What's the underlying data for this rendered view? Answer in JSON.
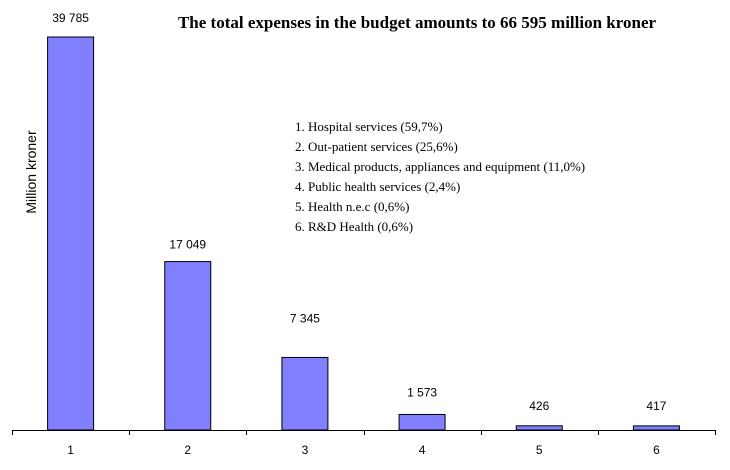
{
  "chart_data": {
    "type": "bar",
    "title": "The total expenses in the budget amounts to 66 595 million kroner",
    "xlabel": "",
    "ylabel": "Million kroner",
    "categories": [
      "1",
      "2",
      "3",
      "4",
      "5",
      "6"
    ],
    "values": [
      39785,
      17049,
      7345,
      1573,
      426,
      417
    ],
    "data_labels": [
      "39 785",
      "17 049",
      "7 345",
      "1 573",
      "426",
      "417"
    ],
    "ylim": [
      0,
      39785
    ],
    "grid": false,
    "bar_color": "#8080ff",
    "legend": [
      "1.  Hospital services (59,7%)",
      "2.  Out-patient services (25,6%)",
      "3.  Medical products, appliances and equipment (11,0%)",
      "4.  Public health services (2,4%)",
      "5.  Health n.e.c (0,6%)",
      "6.  R&D Health (0,6%)"
    ],
    "legend_position": "center"
  }
}
